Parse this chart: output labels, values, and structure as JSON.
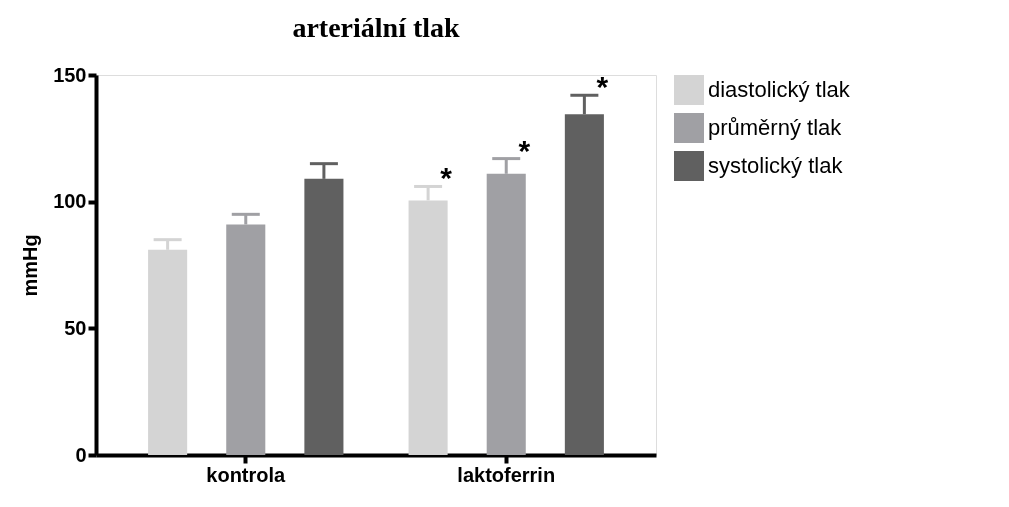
{
  "chart_data": {
    "type": "bar",
    "title": "arteriální tlak",
    "ylabel": "mmHg",
    "categories": [
      "kontrola",
      "laktoferrin"
    ],
    "series": [
      {
        "name": "diastolický tlak",
        "color": "#d4d4d4",
        "values": [
          81,
          100.5
        ],
        "errors": [
          4,
          5.5
        ]
      },
      {
        "name": "průměrný tlak",
        "color": "#a0a0a4",
        "values": [
          91,
          111
        ],
        "errors": [
          4,
          6
        ]
      },
      {
        "name": "systolický tlak",
        "color": "#606060",
        "values": [
          109,
          134.5
        ],
        "errors": [
          6,
          7.5
        ]
      }
    ],
    "ylim": [
      0,
      150
    ],
    "yticks": [
      0,
      50,
      100,
      150
    ],
    "grid": false,
    "legend": "top right",
    "annotations": [
      "*",
      "*",
      "*"
    ]
  }
}
